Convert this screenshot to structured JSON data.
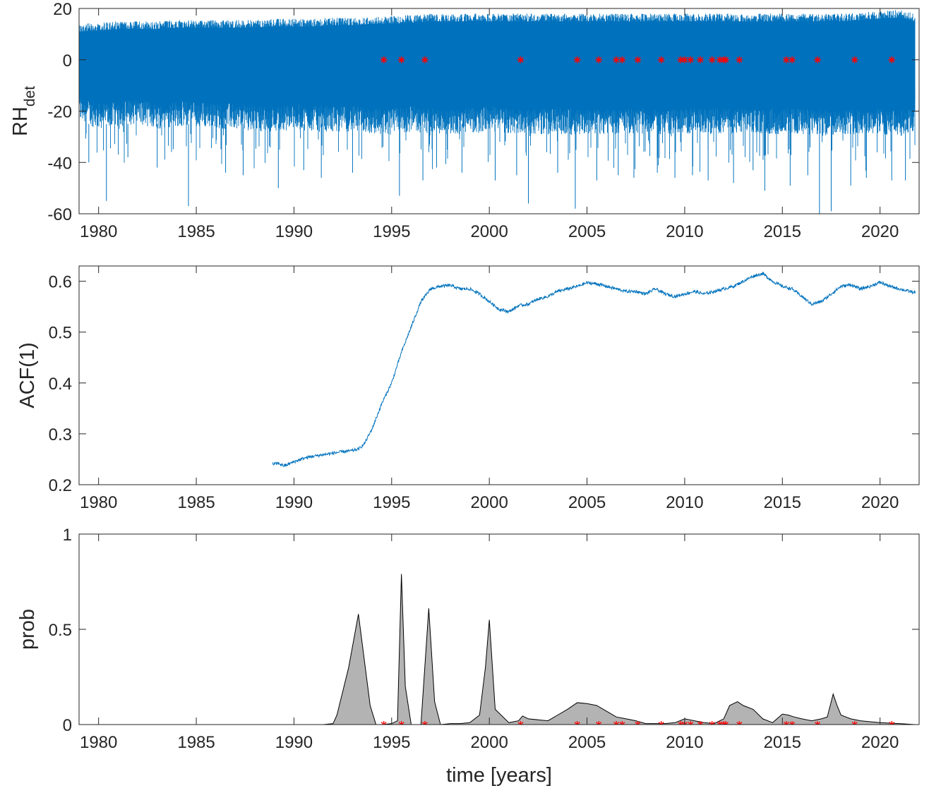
{
  "chart_data": [
    {
      "type": "line",
      "ylabel": "RH",
      "ylabel_sub": "det",
      "xlabel": "",
      "xlim": [
        1979,
        2022
      ],
      "ylim": [
        -60,
        20
      ],
      "x_ticks": [
        1980,
        1985,
        1990,
        1995,
        2000,
        2005,
        2010,
        2015,
        2020
      ],
      "y_ticks": [
        -60,
        -40,
        -20,
        0,
        20
      ],
      "series": [
        {
          "color": "#0072BD",
          "style": "dense daily detrended relative humidity",
          "x_start": 1979.0,
          "x_end": 2021.8,
          "envelope": {
            "x": [
              1979.0,
              1980,
              1981,
              1982,
              1983,
              1984,
              1985,
              1986,
              1987,
              1988,
              1989,
              1990,
              1991,
              1992,
              1993,
              1994,
              1995,
              1996,
              1997,
              1998,
              1999,
              2000,
              2001,
              2002,
              2003,
              2004,
              2005,
              2006,
              2007,
              2008,
              2009,
              2010,
              2011,
              2012,
              2013,
              2014,
              2015,
              2016,
              2017,
              2018,
              2019,
              2020,
              2021,
              2021.8
            ],
            "upper": [
              14,
              14.5,
              15,
              15,
              15,
              15.5,
              15.5,
              15.5,
              15.5,
              15.5,
              16,
              16,
              16,
              16.5,
              16.5,
              17,
              17,
              17.5,
              18,
              18,
              18,
              18,
              18,
              18,
              18,
              18,
              18,
              18,
              18,
              18,
              18,
              18,
              18,
              18,
              18,
              18,
              18,
              18,
              18,
              18,
              18.5,
              19,
              19.5,
              18
            ],
            "lower_typical": [
              -24,
              -27,
              -26,
              -25,
              -27,
              -26,
              -26,
              -27,
              -27,
              -28,
              -28,
              -27,
              -28,
              -28,
              -28,
              -29,
              -29,
              -28,
              -29,
              -29,
              -29,
              -28,
              -29,
              -29,
              -29,
              -29,
              -29,
              -29,
              -29,
              -29,
              -29,
              -29,
              -29,
              -29,
              -29,
              -29,
              -29,
              -29,
              -30,
              -29,
              -29,
              -29,
              -30,
              -28
            ]
          },
          "spikes": {
            "x": [
              1979.5,
              1980.4,
              1981.5,
              1983.0,
              1984.6,
              1986.5,
              1987.4,
              1989.2,
              1990.5,
              1991.4,
              1993.0,
              1995.4,
              1996.6,
              1997.3,
              1998.6,
              2000.3,
              2001.4,
              2002.0,
              2003.5,
              2004.4,
              2005.5,
              2006.6,
              2007.4,
              2008.6,
              2009.5,
              2010.4,
              2011.2,
              2012.5,
              2013.5,
              2014.1,
              2015.4,
              2016.3,
              2016.9,
              2017.5,
              2018.5,
              2019.3,
              2020.6,
              2021.3
            ],
            "y": [
              -40,
              -55,
              -38,
              -42,
              -57,
              -44,
              -45,
              -50,
              -43,
              -46,
              -44,
              -53,
              -47,
              -42,
              -44,
              -47,
              -45,
              -56,
              -44,
              -58,
              -47,
              -45,
              -46,
              -44,
              -46,
              -45,
              -47,
              -48,
              -43,
              -51,
              -49,
              -45,
              -60,
              -59,
              -49,
              -46,
              -47,
              -47
            ]
          }
        },
        {
          "color": "#FF0000",
          "marker": "*",
          "name": "",
          "x": [
            1994.6,
            1995.5,
            1996.7,
            2001.6,
            2004.5,
            2005.6,
            2006.5,
            2006.8,
            2007.6,
            2008.8,
            2009.8,
            2010.0,
            2010.3,
            2010.8,
            2011.4,
            2011.8,
            2012.0,
            2012.1,
            2012.8,
            2015.2,
            2015.5,
            2016.8,
            2018.7,
            2020.6
          ],
          "y": [
            0,
            0,
            0,
            0,
            0,
            0,
            0,
            0,
            0,
            0,
            0,
            0,
            0,
            0,
            0,
            0,
            0,
            0,
            0,
            0,
            0,
            0,
            0,
            0
          ]
        }
      ]
    },
    {
      "type": "line",
      "ylabel": "ACF(1)",
      "xlabel": "",
      "xlim": [
        1979,
        2022
      ],
      "ylim": [
        0.2,
        0.63
      ],
      "x_ticks": [
        1980,
        1985,
        1990,
        1995,
        2000,
        2005,
        2010,
        2015,
        2020
      ],
      "y_ticks": [
        0.2,
        0.3,
        0.4,
        0.5,
        0.6
      ],
      "series": [
        {
          "color": "#0072BD",
          "x": [
            1988.9,
            1989.2,
            1989.5,
            1990.0,
            1990.5,
            1991.0,
            1991.5,
            1992.0,
            1992.5,
            1993.0,
            1993.3,
            1993.6,
            1994.0,
            1994.5,
            1995.0,
            1995.5,
            1996.0,
            1996.5,
            1997.0,
            1997.5,
            1998.0,
            1998.5,
            1999.0,
            1999.5,
            2000.0,
            2000.5,
            2001.0,
            2001.5,
            2002.0,
            2002.5,
            2003.0,
            2003.5,
            2004.0,
            2004.5,
            2005.0,
            2005.5,
            2006.0,
            2006.5,
            2007.0,
            2007.5,
            2008.0,
            2008.5,
            2009.0,
            2009.5,
            2010.0,
            2010.5,
            2011.0,
            2011.5,
            2012.0,
            2012.5,
            2013.0,
            2013.5,
            2014.0,
            2014.5,
            2015.0,
            2015.5,
            2016.0,
            2016.5,
            2017.0,
            2017.5,
            2018.0,
            2018.5,
            2019.0,
            2019.5,
            2020.0,
            2020.5,
            2021.0,
            2021.5,
            2021.8
          ],
          "y": [
            0.24,
            0.242,
            0.237,
            0.245,
            0.252,
            0.256,
            0.259,
            0.262,
            0.265,
            0.267,
            0.27,
            0.28,
            0.31,
            0.36,
            0.4,
            0.46,
            0.51,
            0.56,
            0.585,
            0.59,
            0.592,
            0.585,
            0.585,
            0.575,
            0.56,
            0.545,
            0.54,
            0.552,
            0.555,
            0.565,
            0.57,
            0.58,
            0.585,
            0.59,
            0.597,
            0.595,
            0.59,
            0.585,
            0.58,
            0.58,
            0.575,
            0.585,
            0.575,
            0.57,
            0.575,
            0.58,
            0.575,
            0.58,
            0.585,
            0.59,
            0.6,
            0.61,
            0.615,
            0.6,
            0.59,
            0.585,
            0.57,
            0.555,
            0.56,
            0.575,
            0.59,
            0.593,
            0.585,
            0.59,
            0.598,
            0.59,
            0.585,
            0.58,
            0.578
          ]
        }
      ]
    },
    {
      "type": "area",
      "ylabel": "prob",
      "xlabel": "time [years]",
      "xlim": [
        1979,
        2022
      ],
      "ylim": [
        0,
        1
      ],
      "x_ticks": [
        1980,
        1985,
        1990,
        1995,
        2000,
        2005,
        2010,
        2015,
        2020
      ],
      "y_ticks": [
        0,
        0.5,
        1
      ],
      "y_tick_labels": [
        "0",
        "0.5",
        "1"
      ],
      "series": [
        {
          "fill": "#b3b3b3",
          "stroke": "#000000",
          "x": [
            1988.9,
            1990.0,
            1991.0,
            1991.5,
            1992.0,
            1992.2,
            1992.8,
            1993.3,
            1993.9,
            1994.2,
            1994.5,
            1995.0,
            1995.3,
            1995.5,
            1995.7,
            1996.0,
            1996.5,
            1996.9,
            1997.2,
            1997.5,
            1998.0,
            1998.5,
            1999.0,
            1999.5,
            1999.8,
            2000.0,
            2000.3,
            2001.0,
            2001.5,
            2001.7,
            2002.0,
            2003.0,
            2003.5,
            2004.0,
            2004.5,
            2005.0,
            2005.5,
            2006.0,
            2006.5,
            2007.0,
            2007.5,
            2008.0,
            2009.0,
            2009.5,
            2010.0,
            2010.5,
            2011.0,
            2011.5,
            2012.0,
            2012.3,
            2012.7,
            2013.0,
            2013.5,
            2014.0,
            2014.5,
            2015.0,
            2015.3,
            2015.6,
            2016.0,
            2016.5,
            2017.0,
            2017.3,
            2017.6,
            2017.8,
            2018.0,
            2018.5,
            2019.0,
            2019.5,
            2020.0,
            2021.0,
            2021.8
          ],
          "y": [
            0.0,
            0.0,
            0.0,
            0.0,
            0.005,
            0.05,
            0.3,
            0.58,
            0.1,
            0.0,
            0.0,
            0.005,
            0.02,
            0.79,
            0.2,
            0.0,
            0.0,
            0.61,
            0.12,
            0.0,
            0.005,
            0.005,
            0.01,
            0.05,
            0.3,
            0.55,
            0.08,
            0.01,
            0.02,
            0.045,
            0.03,
            0.02,
            0.05,
            0.08,
            0.115,
            0.11,
            0.1,
            0.07,
            0.04,
            0.03,
            0.02,
            0.005,
            0.005,
            0.01,
            0.03,
            0.02,
            0.01,
            0.005,
            0.03,
            0.1,
            0.12,
            0.1,
            0.08,
            0.03,
            0.01,
            0.055,
            0.05,
            0.04,
            0.03,
            0.02,
            0.03,
            0.04,
            0.16,
            0.1,
            0.05,
            0.03,
            0.02,
            0.015,
            0.01,
            0.005,
            0.0
          ]
        },
        {
          "color": "#FF0000",
          "marker": "*",
          "name": "",
          "x": [
            1994.6,
            1995.5,
            1996.7,
            2001.6,
            2004.5,
            2005.6,
            2006.5,
            2006.8,
            2007.6,
            2008.8,
            2009.8,
            2010.0,
            2010.3,
            2010.8,
            2011.4,
            2011.8,
            2012.0,
            2012.1,
            2012.8,
            2015.2,
            2015.5,
            2016.8,
            2018.7,
            2020.6
          ],
          "y": [
            0,
            0,
            0,
            0,
            0,
            0,
            0,
            0,
            0,
            0,
            0,
            0,
            0,
            0,
            0,
            0,
            0,
            0,
            0,
            0,
            0,
            0,
            0,
            0
          ]
        }
      ]
    }
  ]
}
